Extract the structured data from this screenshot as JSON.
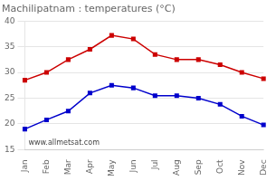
{
  "chart_data": {
    "type": "line",
    "title": "Machilipatnam : temperatures (°C)",
    "categories": [
      "Jan",
      "Feb",
      "Mar",
      "Apr",
      "May",
      "Jun",
      "Jul",
      "Aug",
      "Sep",
      "Oct",
      "Nov",
      "Dec"
    ],
    "series": [
      {
        "color": "#cc0000",
        "marker": "square",
        "values": [
          28.5,
          30.0,
          32.5,
          34.5,
          37.2,
          36.5,
          33.5,
          32.5,
          32.5,
          31.5,
          30.0,
          28.8
        ]
      },
      {
        "color": "#0000cc",
        "marker": "square",
        "values": [
          19.0,
          20.8,
          22.5,
          26.0,
          27.5,
          27.0,
          25.5,
          25.5,
          25.0,
          23.8,
          21.5,
          19.8
        ]
      }
    ],
    "ylim": [
      15,
      40
    ],
    "yticks": [
      15,
      20,
      25,
      30,
      35,
      40
    ],
    "grid": true,
    "annotations": [
      "www.allmetsat.com"
    ]
  }
}
